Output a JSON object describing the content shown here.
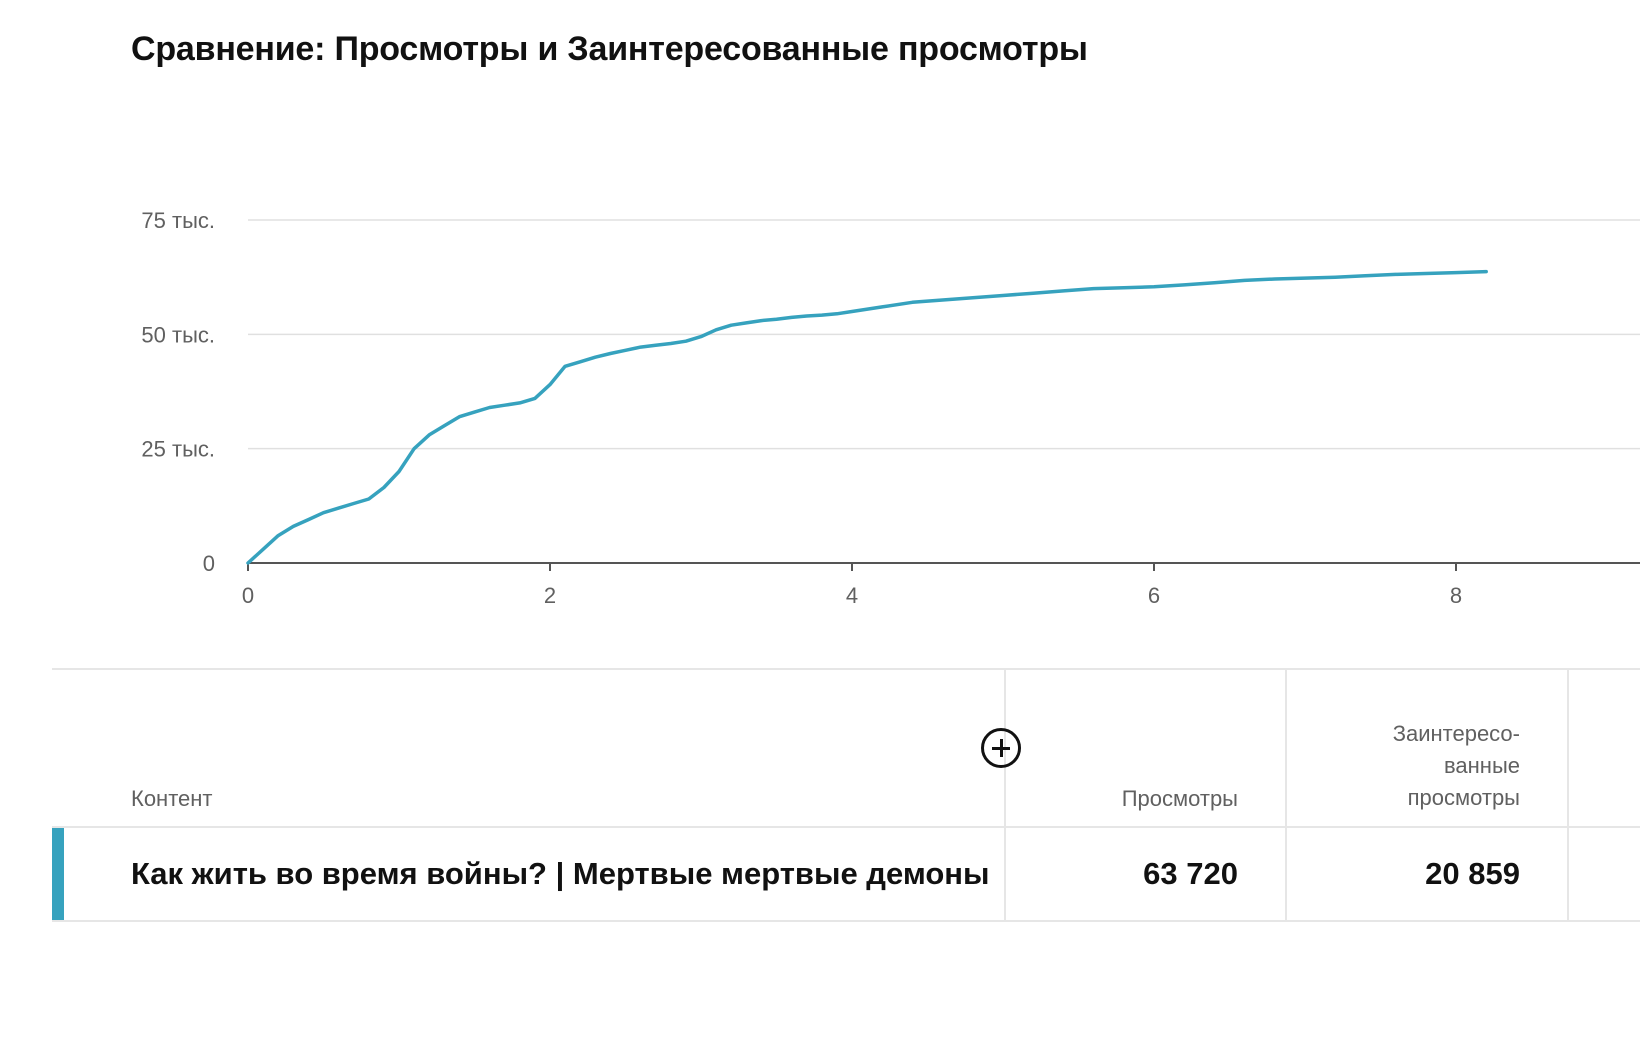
{
  "title": "Сравнение: Просмотры и Заинтересованные просмотры",
  "colors": {
    "series": "#36a2be",
    "grid": "#e0e0e0",
    "axis": "#606060",
    "accent": "#36a2be"
  },
  "chart_data": {
    "type": "line",
    "title": "Сравнение: Просмотры и Заинтересованные просмотры",
    "xlabel": "",
    "ylabel": "",
    "xlim": [
      0,
      9.2
    ],
    "ylim": [
      0,
      75000
    ],
    "x_ticks": [
      0,
      2,
      4,
      6,
      8
    ],
    "x_tick_labels": [
      "0",
      "2",
      "4",
      "6",
      "8"
    ],
    "y_ticks": [
      0,
      25000,
      50000,
      75000
    ],
    "y_tick_labels": [
      "0",
      "25 тыс.",
      "50 тыс.",
      "75 тыс."
    ],
    "grid": true,
    "series": [
      {
        "x": [
          0,
          0.1,
          0.2,
          0.3,
          0.4,
          0.5,
          0.6,
          0.7,
          0.8,
          0.9,
          1.0,
          1.1,
          1.2,
          1.3,
          1.4,
          1.5,
          1.6,
          1.7,
          1.8,
          1.9,
          2.0,
          2.1,
          2.2,
          2.3,
          2.4,
          2.5,
          2.6,
          2.7,
          2.8,
          2.9,
          3.0,
          3.1,
          3.2,
          3.3,
          3.4,
          3.5,
          3.6,
          3.7,
          3.8,
          3.9,
          4.0,
          4.2,
          4.4,
          4.6,
          4.8,
          5.0,
          5.2,
          5.4,
          5.6,
          5.8,
          6.0,
          6.2,
          6.4,
          6.6,
          6.8,
          7.0,
          7.2,
          7.4,
          7.6,
          7.8,
          8.0,
          8.2
        ],
        "y": [
          0,
          3000,
          6000,
          8000,
          9500,
          11000,
          12000,
          13000,
          14000,
          16500,
          20000,
          25000,
          28000,
          30000,
          32000,
          33000,
          34000,
          34500,
          35000,
          36000,
          39000,
          43000,
          44000,
          45000,
          45800,
          46500,
          47200,
          47600,
          48000,
          48500,
          49500,
          51000,
          52000,
          52500,
          53000,
          53300,
          53700,
          54000,
          54200,
          54500,
          55000,
          56000,
          57000,
          57500,
          58000,
          58500,
          59000,
          59500,
          60000,
          60200,
          60400,
          60800,
          61300,
          61800,
          62100,
          62300,
          62500,
          62800,
          63100,
          63300,
          63500,
          63720
        ]
      }
    ]
  },
  "table": {
    "headers": {
      "content": "Контент",
      "views": "Просмотры",
      "engaged": [
        "Заинтересо-",
        "ванные",
        "просмотры"
      ]
    },
    "rows": [
      {
        "title": "Как жить во время войны? | Мертвые мертвые демоны",
        "views": "63 720",
        "engaged": "20 859"
      }
    ],
    "add_metric_icon": "plus-circle-icon"
  }
}
